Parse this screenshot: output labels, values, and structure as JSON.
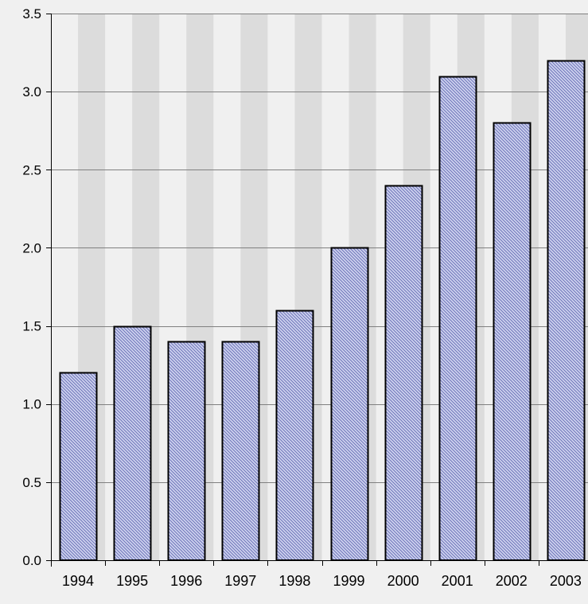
{
  "chart_data": {
    "type": "bar",
    "title": "",
    "xlabel": "",
    "ylabel": "",
    "categories": [
      "1994",
      "1995",
      "1996",
      "1997",
      "1998",
      "1999",
      "2000",
      "2001",
      "2002",
      "2003"
    ],
    "values": [
      1.2,
      1.5,
      1.4,
      1.4,
      1.6,
      2.0,
      2.4,
      3.1,
      2.8,
      3.2
    ],
    "ylim": [
      0,
      3.5
    ],
    "yticks": [
      0.0,
      0.5,
      1.0,
      1.5,
      2.0,
      2.5,
      3.0,
      3.5
    ],
    "ytick_labels": [
      "0.0",
      "0.5",
      "1.0",
      "1.5",
      "2.0",
      "2.5",
      "3.0",
      "3.5"
    ],
    "grid": true,
    "legend": "none",
    "colors": {
      "bar_fill": "#cfd3ef",
      "bar_hatch": "#6c73b8",
      "bar_stroke": "#000000",
      "stripe_light": "#f0f0f0",
      "stripe_dark": "#dcdcdc",
      "gridline": "#808080"
    }
  }
}
